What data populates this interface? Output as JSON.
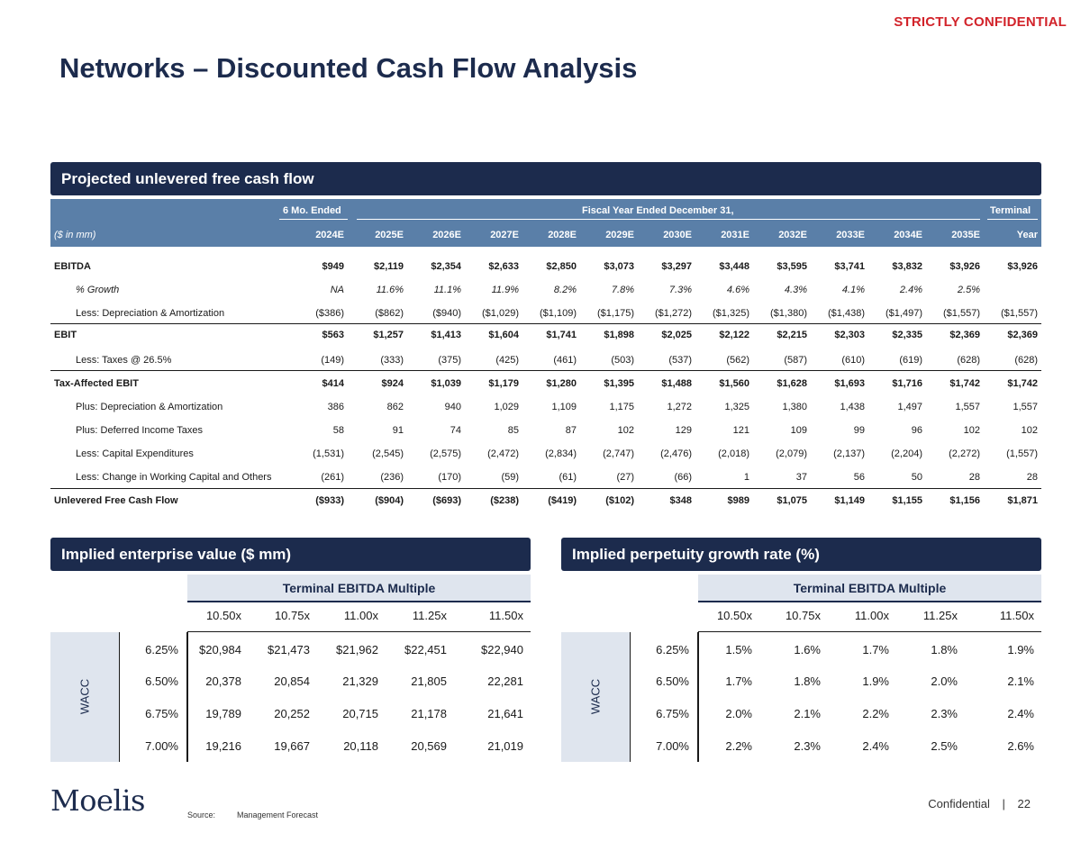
{
  "header": {
    "confidential": "STRICTLY CONFIDENTIAL",
    "title": "Networks – Discounted Cash Flow Analysis"
  },
  "cash_flow": {
    "section_title": "Projected unlevered free cash flow",
    "six_mo_label": "6 Mo. Ended",
    "fiscal_label": "Fiscal Year Ended December 31,",
    "terminal_label": "Terminal",
    "units_label": "($ in mm)",
    "columns": [
      "2024E",
      "2025E",
      "2026E",
      "2027E",
      "2028E",
      "2029E",
      "2030E",
      "2031E",
      "2032E",
      "2033E",
      "2034E",
      "2035E",
      "Year"
    ],
    "rows": [
      {
        "label": "EBITDA",
        "values": [
          "$949",
          "$2,119",
          "$2,354",
          "$2,633",
          "$2,850",
          "$3,073",
          "$3,297",
          "$3,448",
          "$3,595",
          "$3,741",
          "$3,832",
          "$3,926",
          "$3,926"
        ]
      },
      {
        "label": "% Growth",
        "values": [
          "NA",
          "11.6%",
          "11.1%",
          "11.9%",
          "8.2%",
          "7.8%",
          "7.3%",
          "4.6%",
          "4.3%",
          "4.1%",
          "2.4%",
          "2.5%",
          ""
        ]
      },
      {
        "label": "Less: Depreciation & Amortization",
        "values": [
          "($386)",
          "($862)",
          "($940)",
          "($1,029)",
          "($1,109)",
          "($1,175)",
          "($1,272)",
          "($1,325)",
          "($1,380)",
          "($1,438)",
          "($1,497)",
          "($1,557)",
          "($1,557)"
        ]
      },
      {
        "label": "EBIT",
        "values": [
          "$563",
          "$1,257",
          "$1,413",
          "$1,604",
          "$1,741",
          "$1,898",
          "$2,025",
          "$2,122",
          "$2,215",
          "$2,303",
          "$2,335",
          "$2,369",
          "$2,369"
        ]
      },
      {
        "label": "Less: Taxes @ 26.5%",
        "values": [
          "(149)",
          "(333)",
          "(375)",
          "(425)",
          "(461)",
          "(503)",
          "(537)",
          "(562)",
          "(587)",
          "(610)",
          "(619)",
          "(628)",
          "(628)"
        ]
      },
      {
        "label": "Tax-Affected EBIT",
        "values": [
          "$414",
          "$924",
          "$1,039",
          "$1,179",
          "$1,280",
          "$1,395",
          "$1,488",
          "$1,560",
          "$1,628",
          "$1,693",
          "$1,716",
          "$1,742",
          "$1,742"
        ]
      },
      {
        "label": "Plus: Depreciation & Amortization",
        "values": [
          "386",
          "862",
          "940",
          "1,029",
          "1,109",
          "1,175",
          "1,272",
          "1,325",
          "1,380",
          "1,438",
          "1,497",
          "1,557",
          "1,557"
        ]
      },
      {
        "label": "Plus: Deferred Income Taxes",
        "values": [
          "58",
          "91",
          "74",
          "85",
          "87",
          "102",
          "129",
          "121",
          "109",
          "99",
          "96",
          "102",
          "102"
        ]
      },
      {
        "label": "Less: Capital Expenditures",
        "values": [
          "(1,531)",
          "(2,545)",
          "(2,575)",
          "(2,472)",
          "(2,834)",
          "(2,747)",
          "(2,476)",
          "(2,018)",
          "(2,079)",
          "(2,137)",
          "(2,204)",
          "(2,272)",
          "(1,557)"
        ]
      },
      {
        "label": "Less: Change in Working Capital and Others",
        "values": [
          "(261)",
          "(236)",
          "(170)",
          "(59)",
          "(61)",
          "(27)",
          "(66)",
          "1",
          "37",
          "56",
          "50",
          "28",
          "28"
        ]
      },
      {
        "label": "Unlevered Free Cash Flow",
        "values": [
          "($933)",
          "($904)",
          "($693)",
          "($238)",
          "($419)",
          "($102)",
          "$348",
          "$989",
          "$1,075",
          "$1,149",
          "$1,155",
          "$1,156",
          "$1,871"
        ]
      }
    ]
  },
  "ev_table": {
    "section_title": "Implied enterprise value ($ mm)",
    "multiple_header": "Terminal EBITDA Multiple",
    "axis_label": "WACC",
    "multiples": [
      "10.50x",
      "10.75x",
      "11.00x",
      "11.25x",
      "11.50x"
    ],
    "rates": [
      "6.25%",
      "6.50%",
      "6.75%",
      "7.00%"
    ],
    "cells": [
      [
        "$20,984",
        "$21,473",
        "$21,962",
        "$22,451",
        "$22,940"
      ],
      [
        "20,378",
        "20,854",
        "21,329",
        "21,805",
        "22,281"
      ],
      [
        "19,789",
        "20,252",
        "20,715",
        "21,178",
        "21,641"
      ],
      [
        "19,216",
        "19,667",
        "20,118",
        "20,569",
        "21,019"
      ]
    ]
  },
  "pgr_table": {
    "section_title": "Implied perpetuity growth rate (%)",
    "multiple_header": "Terminal EBITDA Multiple",
    "axis_label": "WACC",
    "multiples": [
      "10.50x",
      "10.75x",
      "11.00x",
      "11.25x",
      "11.50x"
    ],
    "rates": [
      "6.25%",
      "6.50%",
      "6.75%",
      "7.00%"
    ],
    "cells": [
      [
        "1.5%",
        "1.6%",
        "1.7%",
        "1.8%",
        "1.9%"
      ],
      [
        "1.7%",
        "1.8%",
        "1.9%",
        "2.0%",
        "2.1%"
      ],
      [
        "2.0%",
        "2.1%",
        "2.2%",
        "2.3%",
        "2.4%"
      ],
      [
        "2.2%",
        "2.3%",
        "2.4%",
        "2.5%",
        "2.6%"
      ]
    ]
  },
  "footer": {
    "logo": "Moelis",
    "source_label": "Source:",
    "source_value": "Management Forecast",
    "confidential": "Confidential",
    "separator": "|",
    "page_number": "22"
  },
  "colors": {
    "navy": "#1c2b4d",
    "header_blue": "#5a7fa8",
    "light_blue": "#dfe5ee",
    "red": "#d2232a"
  }
}
